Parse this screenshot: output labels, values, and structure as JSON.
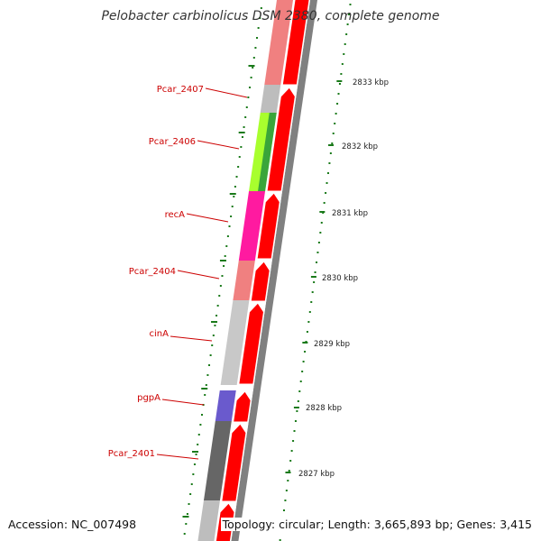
{
  "title": "Pelobacter carbinolicus DSM 2380, complete genome",
  "accession": "Accession: NC_007498",
  "topology": "Topology: circular; Length: 3,665,893 bp; Genes: 3,415",
  "colors": {
    "cds_forward": "#ff0000",
    "backbone": "#808080",
    "label_line": "#cc0000",
    "tick": "#1a7a1a"
  },
  "gene_labels": [
    {
      "id": "Pcar_2407",
      "label": "Pcar_2407"
    },
    {
      "id": "Pcar_2406",
      "label": "Pcar_2406"
    },
    {
      "id": "recA",
      "label": "recA"
    },
    {
      "id": "Pcar_2404",
      "label": "Pcar_2404"
    },
    {
      "id": "cinA",
      "label": "cinA"
    },
    {
      "id": "pgpA",
      "label": "pgpA"
    },
    {
      "id": "Pcar_2401",
      "label": "Pcar_2401"
    }
  ],
  "scale_labels": [
    {
      "label": "2833 kbp"
    },
    {
      "label": "2832 kbp"
    },
    {
      "label": "2831 kbp"
    },
    {
      "label": "2830 kbp"
    },
    {
      "label": "2829 kbp"
    },
    {
      "label": "2828 kbp"
    },
    {
      "label": "2827 kbp"
    }
  ]
}
